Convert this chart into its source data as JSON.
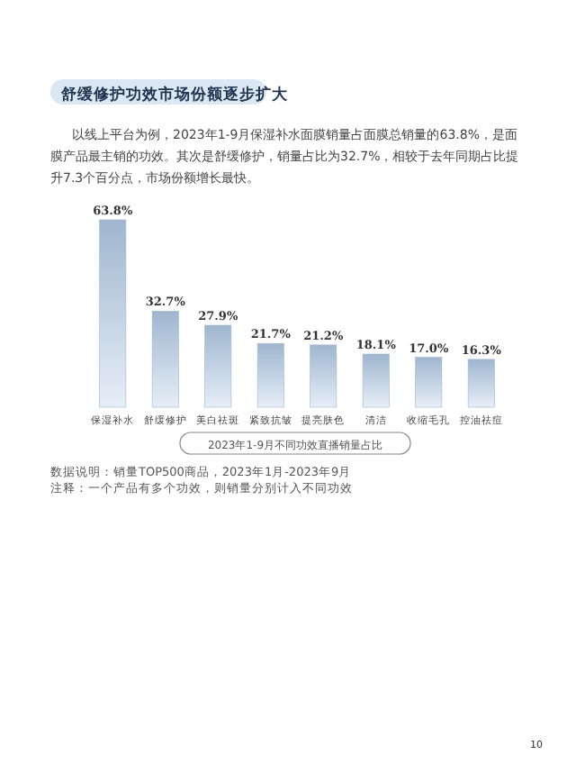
{
  "chart_data": {
    "type": "bar",
    "title": "舒缓修护功效市场份额逐步扩大",
    "subtitle": "以线上平台为例，2023年1-9月保湿补水面膜销量占面膜总销量的63.8%，是面膜产品最主销的功效。其次是舒缓修护，销量占比为32.7%，相较于去年同期占比提升7.3个百分点，市场份额增长最快。",
    "categories": [
      "保湿补水",
      "舒缓修护",
      "美白祛斑",
      "紧致抗皱",
      "提亮肤色",
      "清洁",
      "收缩毛孔",
      "控油祛痘"
    ],
    "values": [
      63.8,
      32.7,
      27.9,
      21.7,
      21.2,
      18.1,
      17.0,
      16.3
    ],
    "value_labels": [
      "63.8%",
      "32.7%",
      "27.9%",
      "21.7%",
      "21.2%",
      "18.1%",
      "17.0%",
      "16.3%"
    ],
    "color": "#9fb6cf",
    "xlabel": "2023年1-9月不同功效直播销量占比",
    "annotations": [
      "数据说明：销量TOP500商品，2023年1月-2023年9月",
      "注释：一个产品有多个功效，则销量分别计入不同功效",
      "10"
    ]
  }
}
